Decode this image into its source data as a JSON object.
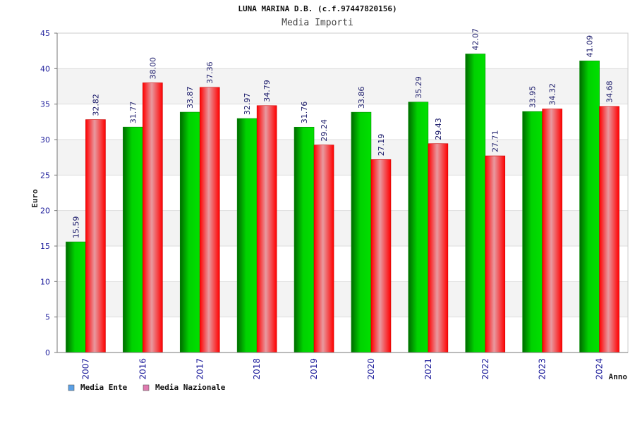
{
  "chart_data": {
    "type": "bar",
    "title": "LUNA MARINA D.B. (c.f.97447820156)",
    "subtitle": "Media Importi",
    "xlabel": "Anno",
    "ylabel": "Euro",
    "ylim": [
      0,
      45
    ],
    "yticks": [
      "0",
      "5",
      "10",
      "15",
      "20",
      "25",
      "30",
      "35",
      "40",
      "45"
    ],
    "categories": [
      "2007",
      "2016",
      "2017",
      "2018",
      "2019",
      "2020",
      "2021",
      "2022",
      "2023",
      "2024"
    ],
    "series": [
      {
        "name": "Media Ente",
        "values": [
          15.59,
          31.77,
          33.87,
          32.97,
          31.76,
          33.86,
          35.29,
          42.07,
          33.95,
          41.09
        ],
        "labels": [
          "15.59",
          "31.77",
          "33.87",
          "32.97",
          "31.76",
          "33.86",
          "35.29",
          "42.07",
          "33.95",
          "41.09"
        ],
        "color": "#00c000",
        "legend_color": "#5aa0e6"
      },
      {
        "name": "Media Nazionale",
        "values": [
          32.82,
          38.0,
          37.36,
          34.79,
          29.24,
          27.19,
          29.43,
          27.71,
          34.32,
          34.68
        ],
        "labels": [
          "32.82",
          "38.00",
          "37.36",
          "34.79",
          "29.24",
          "27.19",
          "29.43",
          "27.71",
          "34.32",
          "34.68"
        ],
        "color": "#ff0000",
        "legend_color": "#e07ab0"
      }
    ],
    "grid": true,
    "legend_position": "bottom-left"
  }
}
